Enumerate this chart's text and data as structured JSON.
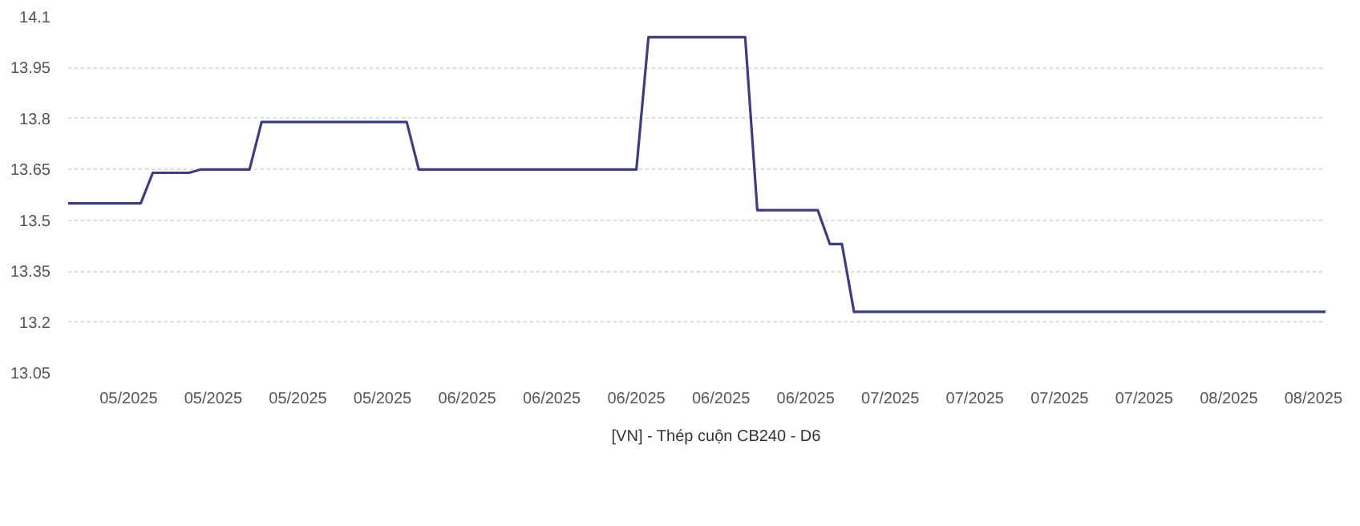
{
  "chart_data": {
    "type": "line",
    "x": [
      "2025-04-30",
      "2025-05-06",
      "2025-05-07",
      "2025-05-10",
      "2025-05-11",
      "2025-05-15",
      "2025-05-16",
      "2025-05-28",
      "2025-05-29",
      "2025-06-16",
      "2025-06-17",
      "2025-06-25",
      "2025-06-26",
      "2025-07-01",
      "2025-07-02",
      "2025-07-03",
      "2025-07-04",
      "2025-08-12"
    ],
    "series": [
      {
        "name": "[VN] - Thép cuộn CB240 - D6",
        "color": "#3d3f7a",
        "values": [
          13.55,
          13.55,
          13.64,
          13.64,
          13.65,
          13.65,
          13.79,
          13.79,
          13.65,
          13.65,
          14.04,
          14.04,
          13.53,
          13.53,
          13.43,
          13.43,
          13.23,
          13.23
        ]
      }
    ],
    "xlim": [
      "2025-04-30",
      "2025-08-12"
    ],
    "xticks": [
      {
        "value": "2025-05-05",
        "label": "05/2025"
      },
      {
        "value": "2025-05-12",
        "label": "05/2025"
      },
      {
        "value": "2025-05-19",
        "label": "05/2025"
      },
      {
        "value": "2025-05-26",
        "label": "05/2025"
      },
      {
        "value": "2025-06-02",
        "label": "06/2025"
      },
      {
        "value": "2025-06-09",
        "label": "06/2025"
      },
      {
        "value": "2025-06-16",
        "label": "06/2025"
      },
      {
        "value": "2025-06-23",
        "label": "06/2025"
      },
      {
        "value": "2025-06-30",
        "label": "06/2025"
      },
      {
        "value": "2025-07-07",
        "label": "07/2025"
      },
      {
        "value": "2025-07-14",
        "label": "07/2025"
      },
      {
        "value": "2025-07-21",
        "label": "07/2025"
      },
      {
        "value": "2025-07-28",
        "label": "07/2025"
      },
      {
        "value": "2025-08-04",
        "label": "08/2025"
      },
      {
        "value": "2025-08-11",
        "label": "08/2025"
      }
    ],
    "ylim": [
      13.05,
      14.1
    ],
    "yticks": [
      13.05,
      13.2,
      13.35,
      13.5,
      13.65,
      13.8,
      13.95,
      14.1
    ],
    "grid": "y",
    "legend": "bottom",
    "marker": "none",
    "line_style": "solid"
  }
}
